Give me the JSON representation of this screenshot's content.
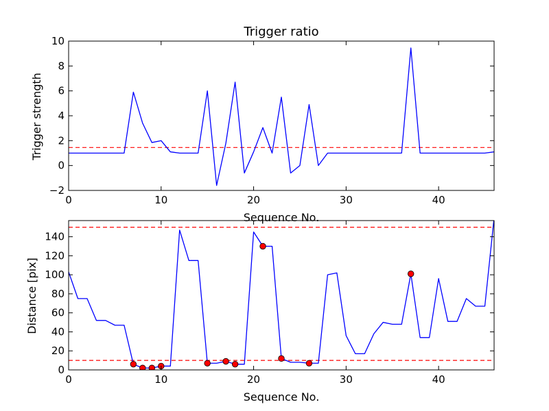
{
  "chart_data": [
    {
      "type": "line",
      "title": "Trigger ratio",
      "xlabel": "Sequence No.",
      "ylabel": "Trigger strength",
      "xlim": [
        0,
        46
      ],
      "ylim": [
        -2,
        10
      ],
      "grid": false,
      "x_ticks": [
        "0",
        "10",
        "20",
        "30",
        "40"
      ],
      "x_tick_values": [
        0,
        10,
        20,
        30,
        40
      ],
      "y_ticks": [
        "−2",
        "0",
        "2",
        "4",
        "6",
        "8",
        "10"
      ],
      "y_tick_values": [
        -2,
        0,
        2,
        4,
        6,
        8,
        10
      ],
      "series": [
        {
          "color": "#0000ff",
          "style": "solid",
          "x": [
            0,
            1,
            2,
            3,
            4,
            5,
            6,
            7,
            8,
            9,
            10,
            11,
            12,
            13,
            14,
            15,
            16,
            17,
            18,
            19,
            20,
            21,
            22,
            23,
            24,
            25,
            26,
            27,
            28,
            29,
            30,
            31,
            32,
            33,
            34,
            35,
            36,
            37,
            38,
            39,
            40,
            41,
            42,
            43,
            44,
            45,
            46
          ],
          "y": [
            1.0,
            1.0,
            1.0,
            1.0,
            1.0,
            1.0,
            1.0,
            5.9,
            3.4,
            1.85,
            2.0,
            1.1,
            1.0,
            1.0,
            1.0,
            6.0,
            -1.6,
            1.8,
            6.7,
            -0.6,
            1.1,
            3.05,
            1.0,
            5.5,
            -0.6,
            0.0,
            4.9,
            0.0,
            1.0,
            1.0,
            1.0,
            1.0,
            1.0,
            1.0,
            1.0,
            1.0,
            1.0,
            9.45,
            1.0,
            1.0,
            1.0,
            1.0,
            1.0,
            1.0,
            1.0,
            1.0,
            1.1
          ]
        }
      ],
      "hlines": [
        {
          "y": 1.45,
          "color": "#ff0000",
          "style": "dashed"
        }
      ]
    },
    {
      "type": "line",
      "title": "",
      "xlabel": "Sequence No.",
      "ylabel": "Distance [pix]",
      "xlim": [
        0,
        46
      ],
      "ylim": [
        0,
        157
      ],
      "grid": false,
      "x_ticks": [
        "0",
        "10",
        "20",
        "30",
        "40"
      ],
      "x_tick_values": [
        0,
        10,
        20,
        30,
        40
      ],
      "y_ticks": [
        "0",
        "20",
        "40",
        "60",
        "80",
        "100",
        "120",
        "140"
      ],
      "y_tick_values": [
        0,
        20,
        40,
        60,
        80,
        100,
        120,
        140
      ],
      "series": [
        {
          "color": "#0000ff",
          "style": "solid",
          "x": [
            0,
            1,
            2,
            3,
            4,
            5,
            6,
            7,
            8,
            9,
            10,
            11,
            12,
            13,
            14,
            15,
            16,
            17,
            18,
            19,
            20,
            21,
            22,
            23,
            24,
            25,
            26,
            27,
            28,
            29,
            30,
            31,
            32,
            33,
            34,
            35,
            36,
            37,
            38,
            39,
            40,
            41,
            42,
            43,
            44,
            45,
            46
          ],
          "y": [
            103,
            75,
            75,
            52,
            52,
            47,
            47,
            6,
            2,
            2,
            4,
            4,
            147,
            115,
            115,
            7,
            7,
            9,
            6,
            6,
            145,
            130,
            130,
            12,
            8,
            8,
            7,
            7,
            100,
            102,
            36,
            17,
            17,
            38,
            50,
            48,
            48,
            101,
            34,
            34,
            96,
            51,
            51,
            75,
            67,
            67,
            160
          ]
        },
        {
          "color": "#ff0000",
          "style": "markers",
          "x": [
            7,
            8,
            9,
            10,
            15,
            17,
            18,
            21,
            23,
            26,
            37
          ],
          "y": [
            6,
            2,
            2,
            4,
            7,
            9,
            6,
            130,
            12,
            7,
            101
          ]
        }
      ],
      "hlines": [
        {
          "y": 10,
          "color": "#ff0000",
          "style": "dashed"
        },
        {
          "y": 150,
          "color": "#ff0000",
          "style": "dashed"
        }
      ]
    }
  ]
}
